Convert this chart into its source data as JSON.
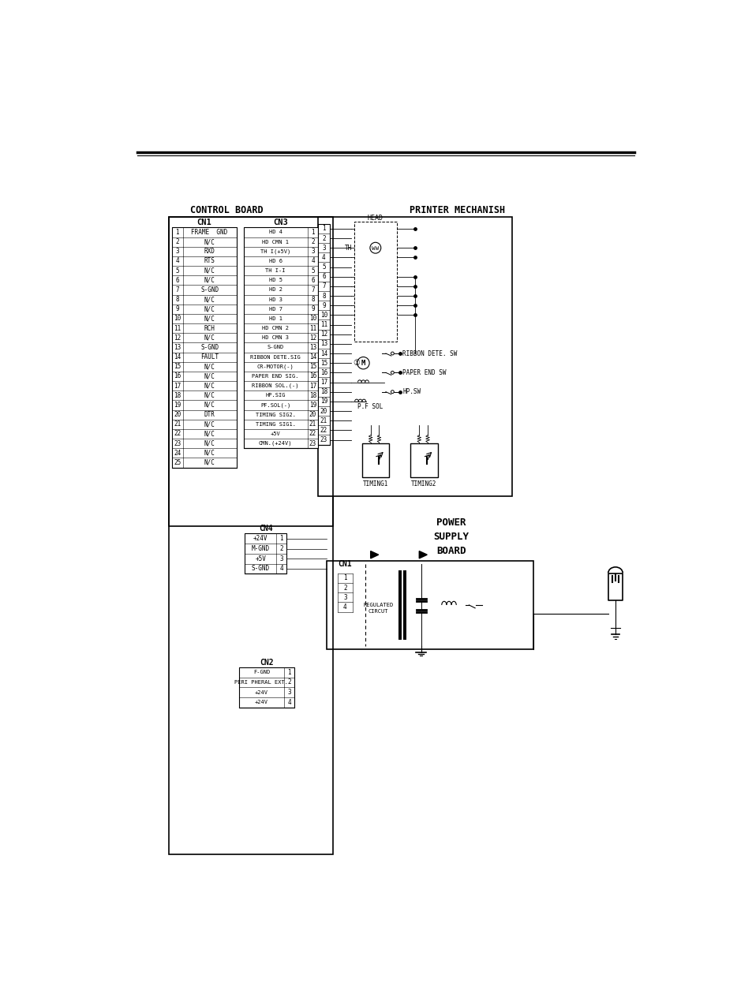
{
  "bg_color": "#ffffff",
  "title_control": "CONTROL BOARD",
  "title_printer": "PRINTER MECHANISH",
  "title_power": "POWER\nSUPPLY\nBOARD",
  "cn1_title": "CN1",
  "cn3_title": "CN3",
  "cn4_title": "CN4",
  "cn2_title": "CN2",
  "cn1_rows": [
    [
      "1",
      "FRAME  GND"
    ],
    [
      "2",
      "N/C"
    ],
    [
      "3",
      "RXD"
    ],
    [
      "4",
      "RTS"
    ],
    [
      "5",
      "N/C"
    ],
    [
      "6",
      "N/C"
    ],
    [
      "7",
      "S-GND"
    ],
    [
      "8",
      "N/C"
    ],
    [
      "9",
      "N/C"
    ],
    [
      "10",
      "N/C"
    ],
    [
      "11",
      "RCH"
    ],
    [
      "12",
      "N/C"
    ],
    [
      "13",
      "S-GND"
    ],
    [
      "14",
      "FAULT"
    ],
    [
      "15",
      "N/C"
    ],
    [
      "16",
      "N/C"
    ],
    [
      "17",
      "N/C"
    ],
    [
      "18",
      "N/C"
    ],
    [
      "19",
      "N/C"
    ],
    [
      "20",
      "DTR"
    ],
    [
      "21",
      "N/C"
    ],
    [
      "22",
      "N/C"
    ],
    [
      "23",
      "N/C"
    ],
    [
      "24",
      "N/C"
    ],
    [
      "25",
      "N/C"
    ]
  ],
  "cn3_rows": [
    [
      "HD 4",
      "1"
    ],
    [
      "HD CMN 1",
      "2"
    ],
    [
      "TH I(+5V)",
      "3"
    ],
    [
      "HD 6",
      "4"
    ],
    [
      "TH I-I",
      "5"
    ],
    [
      "HD 5",
      "6"
    ],
    [
      "HD 2",
      "7"
    ],
    [
      "HD 3",
      "8"
    ],
    [
      "HD 7",
      "9"
    ],
    [
      "HD 1",
      "10"
    ],
    [
      "HD CMN 2",
      "11"
    ],
    [
      "HD CMN 3",
      "12"
    ],
    [
      "S-GND",
      "13"
    ],
    [
      "RIBBON DETE.SIG",
      "14"
    ],
    [
      "CR-MOTOR(-)",
      "15"
    ],
    [
      "PAPER END SIG.",
      "16"
    ],
    [
      "RIBBON SOL.(-)",
      "17"
    ],
    [
      "HP.SIG",
      "18"
    ],
    [
      "PF.SOL(-)",
      "19"
    ],
    [
      "TIMING SIG2.",
      "20"
    ],
    [
      "TIMING SIG1.",
      "21"
    ],
    [
      "+5V",
      "22"
    ],
    [
      "CMN.(+24V)",
      "23"
    ]
  ],
  "cn4_rows": [
    [
      "+24V",
      "1"
    ],
    [
      "M-GND",
      "2"
    ],
    [
      "+5V",
      "3"
    ],
    [
      "S-GND",
      "4"
    ]
  ],
  "cn2_rows": [
    [
      "F-GND",
      "1"
    ],
    [
      "PERI PHERAL EXT.",
      "2"
    ],
    [
      "+24V",
      "3"
    ],
    [
      "+24V",
      "4"
    ]
  ]
}
